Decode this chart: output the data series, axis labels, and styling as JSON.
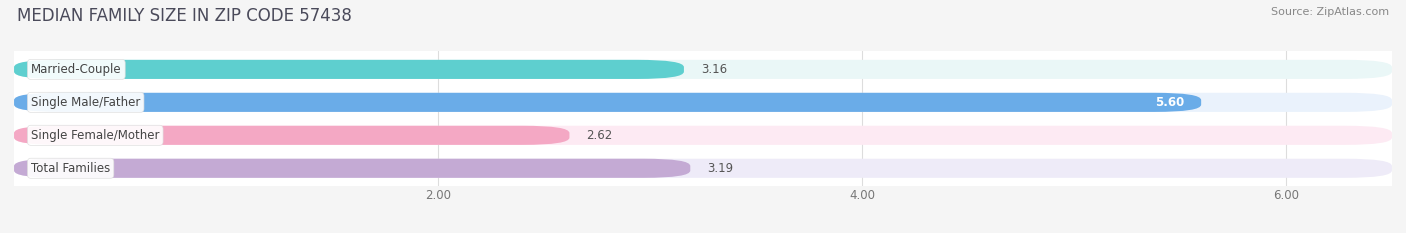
{
  "title": "MEDIAN FAMILY SIZE IN ZIP CODE 57438",
  "source": "Source: ZipAtlas.com",
  "categories": [
    "Married-Couple",
    "Single Male/Father",
    "Single Female/Mother",
    "Total Families"
  ],
  "values": [
    3.16,
    5.6,
    2.62,
    3.19
  ],
  "bar_colors": [
    "#5ecfcf",
    "#6aace8",
    "#f4a8c4",
    "#c4aad4"
  ],
  "bar_bg_colors": [
    "#eaf7f7",
    "#eaf2fc",
    "#fdeaf3",
    "#eeebf8"
  ],
  "xlim_min": 0,
  "xlim_max": 6.5,
  "xticks": [
    2.0,
    4.0,
    6.0
  ],
  "xtick_labels": [
    "2.00",
    "4.00",
    "6.00"
  ],
  "bar_height": 0.58,
  "bg_color": "#f5f5f5",
  "plot_bg_color": "#ffffff",
  "title_fontsize": 12,
  "label_fontsize": 8.5,
  "value_fontsize": 8.5,
  "source_fontsize": 8
}
